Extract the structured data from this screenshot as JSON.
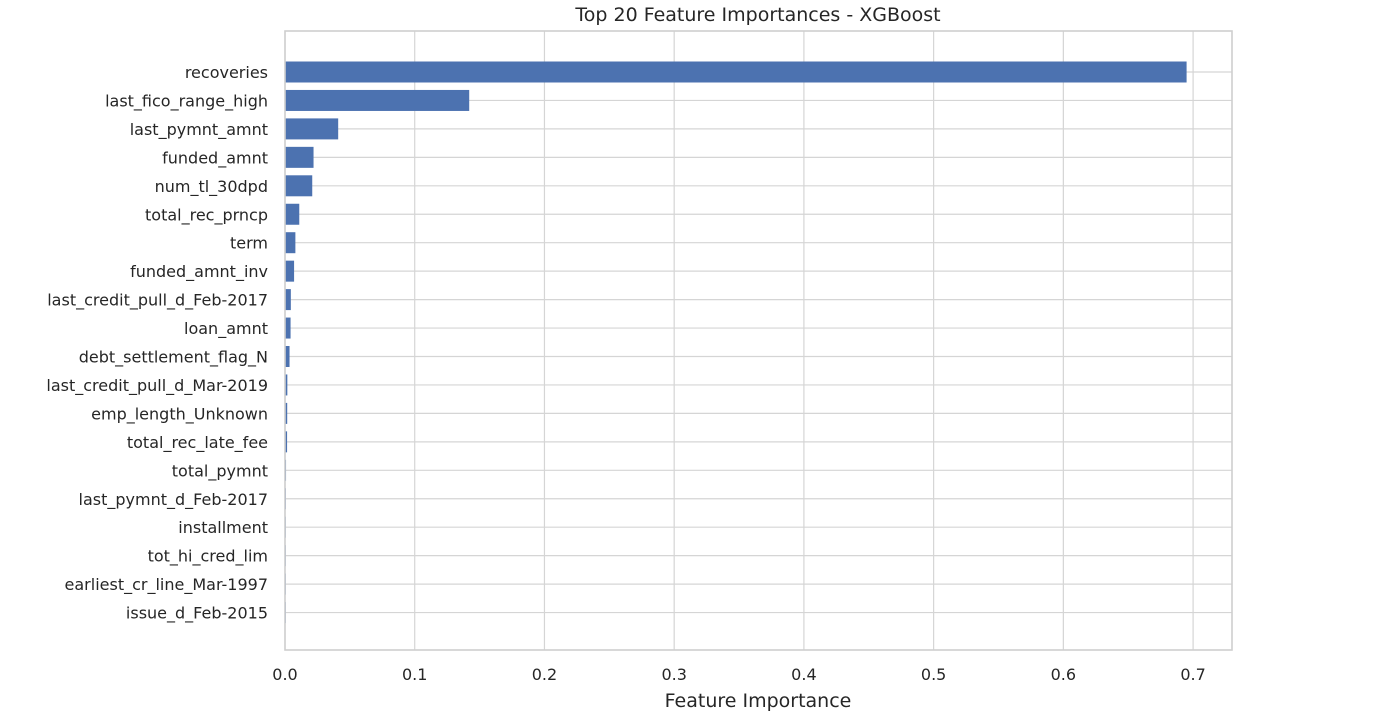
{
  "chart_data": {
    "type": "bar",
    "orientation": "horizontal",
    "title": "Top 20 Feature Importances - XGBoost",
    "xlabel": "Feature Importance",
    "ylabel": "",
    "xlim": [
      0,
      0.73
    ],
    "xticks": [
      0.0,
      0.1,
      0.2,
      0.3,
      0.4,
      0.5,
      0.6,
      0.7
    ],
    "xtick_labels": [
      "0.0",
      "0.1",
      "0.2",
      "0.3",
      "0.4",
      "0.5",
      "0.6",
      "0.7"
    ],
    "grid": true,
    "bar_color": "#4C72B0",
    "categories": [
      "recoveries",
      "last_fico_range_high",
      "last_pymnt_amnt",
      "funded_amnt",
      "num_tl_30dpd",
      "total_rec_prncp",
      "term",
      "funded_amnt_inv",
      "last_credit_pull_d_Feb-2017",
      "loan_amnt",
      "debt_settlement_flag_N",
      "last_credit_pull_d_Mar-2019",
      "emp_length_Unknown",
      "total_rec_late_fee",
      "total_pymnt",
      "last_pymnt_d_Feb-2017",
      "installment",
      "tot_hi_cred_lim",
      "earliest_cr_line_Mar-1997",
      "issue_d_Feb-2015"
    ],
    "values": [
      0.695,
      0.142,
      0.041,
      0.022,
      0.021,
      0.011,
      0.008,
      0.007,
      0.0045,
      0.0043,
      0.0035,
      0.0018,
      0.0017,
      0.0016,
      0.0008,
      0.0007,
      0.0006,
      0.0005,
      0.0004,
      0.0003
    ]
  }
}
